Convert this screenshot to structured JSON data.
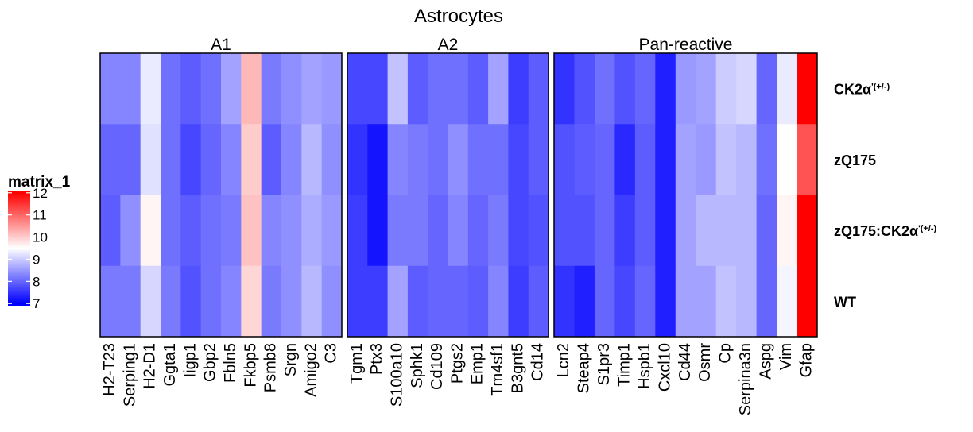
{
  "chart_data": {
    "type": "heatmap",
    "title": "Astrocytes",
    "rows": [
      [
        "CK2α",
        "'(+/-)"
      ],
      [
        "zQ175"
      ],
      [
        "zQ175:CK2α",
        "'(+/-)"
      ],
      [
        "WT"
      ]
    ],
    "panels": [
      {
        "name": "A1",
        "columns": [
          "H2-T23",
          "Serping1",
          "H2-D1",
          "Ggta1",
          "Iigp1",
          "Gbp2",
          "Fbln5",
          "Fkbp5",
          "Psmb8",
          "Srgn",
          "Amigo2",
          "C3"
        ],
        "values": [
          [
            8.3,
            8.3,
            9.3,
            8.1,
            7.9,
            8.1,
            8.6,
            10.2,
            8.2,
            8.4,
            8.6,
            8.5
          ],
          [
            8.0,
            8.0,
            9.2,
            8.1,
            7.7,
            8.0,
            8.3,
            10.0,
            7.9,
            8.3,
            8.8,
            8.4
          ],
          [
            7.9,
            8.4,
            9.6,
            8.1,
            7.9,
            8.1,
            8.2,
            10.1,
            8.3,
            8.4,
            8.7,
            8.5
          ],
          [
            8.2,
            8.2,
            9.1,
            8.2,
            7.8,
            8.1,
            8.3,
            9.9,
            8.2,
            8.4,
            8.8,
            8.4
          ]
        ]
      },
      {
        "name": "A2",
        "columns": [
          "Tgm1",
          "Ptx3",
          "S100a10",
          "Sphk1",
          "Cd109",
          "Ptgs2",
          "Emp1",
          "Tm4sf1",
          "B3gnt5",
          "Cd14"
        ],
        "values": [
          [
            7.7,
            7.7,
            8.9,
            7.9,
            8.1,
            8.1,
            7.9,
            8.6,
            7.6,
            7.9
          ],
          [
            7.5,
            7.2,
            8.3,
            8.2,
            8.1,
            8.4,
            8.1,
            8.1,
            7.7,
            7.9
          ],
          [
            7.6,
            7.2,
            8.2,
            8.2,
            8.0,
            8.3,
            8.0,
            8.2,
            7.7,
            7.8
          ],
          [
            7.6,
            7.6,
            8.6,
            7.9,
            8.0,
            8.0,
            7.9,
            8.3,
            7.6,
            7.9
          ]
        ]
      },
      {
        "name": "Pan-reactive",
        "columns": [
          "Lcn2",
          "Steap4",
          "S1pr3",
          "Timp1",
          "Hspb1",
          "Cxcl10",
          "Cd44",
          "Osmr",
          "Cp",
          "Serpina3n",
          "Aspg",
          "Vim",
          "Gfap"
        ],
        "values": [
          [
            7.5,
            7.8,
            8.1,
            7.8,
            8.0,
            7.3,
            8.5,
            8.6,
            9.0,
            9.1,
            8.0,
            9.3,
            12.0
          ],
          [
            7.8,
            7.9,
            8.0,
            7.4,
            7.9,
            7.3,
            8.6,
            8.5,
            8.9,
            8.8,
            8.1,
            9.5,
            11.2
          ],
          [
            7.8,
            7.8,
            8.0,
            7.6,
            7.9,
            7.3,
            8.6,
            8.8,
            8.8,
            8.8,
            8.0,
            9.6,
            12.0
          ],
          [
            7.5,
            7.3,
            8.0,
            7.7,
            8.0,
            7.3,
            8.6,
            8.6,
            8.9,
            8.8,
            8.0,
            9.4,
            12.1
          ]
        ]
      }
    ],
    "legend_title": "matrix_1",
    "color_breaks": [
      7,
      9.5,
      12
    ],
    "colors": [
      "#0000ff",
      "#ffffff",
      "#ff0000"
    ],
    "clim": [
      6.9,
      12.1
    ],
    "cticks": [
      7,
      8,
      9,
      10,
      11,
      12
    ]
  }
}
